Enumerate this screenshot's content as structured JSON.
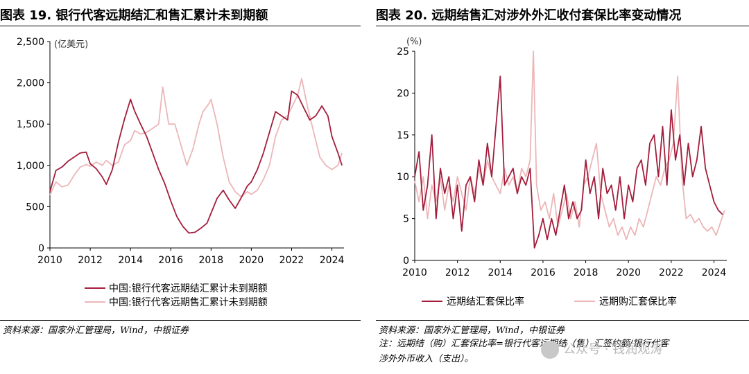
{
  "left": {
    "title": "图表 19.  银行代客远期结汇和售汇累计未到期额",
    "unit": "(亿美元)",
    "source": "资料来源：国家外汇管理局，Wind，中银证券",
    "legend": [
      "中国:银行代客远期结汇累计未到期额",
      "中国:银行代客远期售汇累计未到期额"
    ]
  },
  "right": {
    "title": "图表 20.  远期结售汇对涉外外汇收付套保比率变动情况",
    "unit": "(%)",
    "source": "资料来源：国家外汇管理局，Wind，中银证券",
    "note_line1": "注：远期结（购）汇套保比率=银行代客远期结（售）汇签约额/银行代客",
    "note_line2": "涉外外币收入（支出）。",
    "legend": [
      "远期结汇套保比率",
      "远期购汇套保比率"
    ]
  },
  "watermark": "公众号 · 钱润观涛",
  "colors": {
    "dark": "#a31d3b",
    "light": "#ecb6b8"
  },
  "chart_data": [
    {
      "type": "line",
      "title": "图表 19.  银行代客远期结汇和售汇累计未到期额",
      "ylabel": "(亿美元)",
      "xlim": [
        2010,
        2024.6
      ],
      "ylim": [
        0,
        2500
      ],
      "xticks": [
        2010,
        2012,
        2014,
        2016,
        2018,
        2020,
        2022,
        2024
      ],
      "yticks": [
        0,
        500,
        1000,
        1500,
        2000,
        2500
      ],
      "grid": false,
      "legend_position": "bottom-left",
      "series": [
        {
          "name": "中国:银行代客远期结汇累计未到期额",
          "x": [
            2010.0,
            2010.3,
            2010.6,
            2010.9,
            2011.2,
            2011.5,
            2011.8,
            2012.0,
            2012.3,
            2012.6,
            2012.8,
            2013.1,
            2013.4,
            2013.7,
            2014.0,
            2014.2,
            2014.5,
            2014.8,
            2015.1,
            2015.4,
            2015.7,
            2016.0,
            2016.3,
            2016.6,
            2016.9,
            2017.2,
            2017.5,
            2017.8,
            2018.0,
            2018.3,
            2018.6,
            2018.9,
            2019.2,
            2019.5,
            2019.8,
            2020.0,
            2020.3,
            2020.6,
            2020.9,
            2021.2,
            2021.5,
            2021.8,
            2022.0,
            2022.3,
            2022.6,
            2022.9,
            2023.2,
            2023.5,
            2023.8,
            2024.0,
            2024.3,
            2024.5
          ],
          "values": [
            680,
            940,
            980,
            1050,
            1100,
            1150,
            1160,
            1020,
            960,
            860,
            770,
            950,
            1280,
            1560,
            1800,
            1660,
            1500,
            1350,
            1150,
            950,
            780,
            570,
            380,
            260,
            180,
            190,
            240,
            300,
            420,
            600,
            700,
            580,
            480,
            610,
            750,
            800,
            950,
            1150,
            1400,
            1650,
            1600,
            1550,
            1900,
            1850,
            1700,
            1550,
            1600,
            1720,
            1600,
            1350,
            1150,
            1000
          ]
        },
        {
          "name": "中国:银行代客远期售汇累计未到期额",
          "x": [
            2010.0,
            2010.3,
            2010.6,
            2010.9,
            2011.2,
            2011.5,
            2011.8,
            2012.0,
            2012.3,
            2012.6,
            2012.8,
            2013.1,
            2013.4,
            2013.7,
            2014.0,
            2014.2,
            2014.5,
            2014.8,
            2015.1,
            2015.4,
            2015.6,
            2015.9,
            2016.2,
            2016.5,
            2016.8,
            2017.1,
            2017.4,
            2017.6,
            2017.9,
            2018.0,
            2018.3,
            2018.6,
            2018.9,
            2019.2,
            2019.5,
            2019.8,
            2020.0,
            2020.3,
            2020.6,
            2020.9,
            2021.2,
            2021.5,
            2021.8,
            2022.0,
            2022.3,
            2022.5,
            2022.8,
            2023.1,
            2023.4,
            2023.7,
            2024.0,
            2024.3,
            2024.5
          ],
          "values": [
            640,
            800,
            740,
            760,
            880,
            980,
            1010,
            990,
            1040,
            1000,
            1060,
            1000,
            1040,
            1250,
            1300,
            1420,
            1380,
            1400,
            1450,
            1500,
            1950,
            1500,
            1500,
            1250,
            1000,
            1200,
            1500,
            1650,
            1750,
            1800,
            1500,
            1100,
            800,
            680,
            620,
            680,
            650,
            700,
            830,
            1000,
            1350,
            1550,
            1600,
            1700,
            1850,
            2050,
            1700,
            1400,
            1100,
            1000,
            950,
            1000,
            1150
          ]
        }
      ]
    },
    {
      "type": "line",
      "title": "图表 20.  远期结售汇对涉外外汇收付套保比率变动情况",
      "ylabel": "(%)",
      "xlim": [
        2010,
        2024.6
      ],
      "ylim": [
        0,
        25
      ],
      "xticks": [
        2010,
        2012,
        2014,
        2016,
        2018,
        2020,
        2022,
        2024
      ],
      "yticks": [
        0,
        5,
        10,
        15,
        20,
        25
      ],
      "grid": false,
      "legend_position": "bottom",
      "series": [
        {
          "name": "远期结汇套保比率",
          "x": [
            2010.0,
            2010.2,
            2010.4,
            2010.6,
            2010.8,
            2011.0,
            2011.2,
            2011.4,
            2011.6,
            2011.8,
            2012.0,
            2012.2,
            2012.4,
            2012.6,
            2012.8,
            2013.0,
            2013.2,
            2013.4,
            2013.6,
            2013.8,
            2014.0,
            2014.2,
            2014.4,
            2014.6,
            2014.8,
            2015.0,
            2015.2,
            2015.4,
            2015.6,
            2015.8,
            2016.0,
            2016.2,
            2016.4,
            2016.6,
            2016.8,
            2017.0,
            2017.2,
            2017.4,
            2017.6,
            2017.8,
            2018.0,
            2018.2,
            2018.4,
            2018.6,
            2018.8,
            2019.0,
            2019.2,
            2019.4,
            2019.6,
            2019.8,
            2020.0,
            2020.2,
            2020.4,
            2020.6,
            2020.8,
            2021.0,
            2021.2,
            2021.4,
            2021.6,
            2021.8,
            2022.0,
            2022.2,
            2022.4,
            2022.6,
            2022.8,
            2023.0,
            2023.2,
            2023.4,
            2023.6,
            2023.8,
            2024.0,
            2024.2,
            2024.4
          ],
          "values": [
            10,
            13,
            6,
            9,
            15,
            5,
            11,
            8,
            10,
            5,
            9,
            3.5,
            9,
            10,
            7,
            12,
            9,
            14,
            10,
            16,
            22,
            9,
            10,
            11,
            8,
            10,
            9,
            11,
            1.5,
            3,
            5,
            2.5,
            5,
            3,
            6,
            9,
            5,
            7,
            5,
            6,
            12,
            8,
            10,
            5,
            11,
            8,
            9,
            6,
            10,
            5,
            9,
            7,
            11,
            12,
            9,
            14,
            15,
            10,
            16,
            9,
            18,
            12,
            15,
            9,
            14,
            10,
            12,
            16,
            11,
            9,
            7,
            6,
            5.5
          ]
        },
        {
          "name": "远期购汇套保比率",
          "x": [
            2010.0,
            2010.2,
            2010.4,
            2010.6,
            2010.8,
            2011.0,
            2011.2,
            2011.4,
            2011.6,
            2011.8,
            2012.0,
            2012.2,
            2012.4,
            2012.6,
            2012.8,
            2013.0,
            2013.2,
            2013.4,
            2013.6,
            2013.8,
            2014.0,
            2014.2,
            2014.4,
            2014.6,
            2014.8,
            2015.0,
            2015.2,
            2015.4,
            2015.55,
            2015.7,
            2015.9,
            2016.1,
            2016.3,
            2016.5,
            2016.7,
            2016.9,
            2017.1,
            2017.3,
            2017.5,
            2017.7,
            2017.9,
            2018.1,
            2018.3,
            2018.5,
            2018.7,
            2018.9,
            2019.1,
            2019.3,
            2019.5,
            2019.7,
            2019.9,
            2020.1,
            2020.3,
            2020.5,
            2020.7,
            2020.9,
            2021.1,
            2021.3,
            2021.5,
            2021.7,
            2021.9,
            2022.1,
            2022.3,
            2022.5,
            2022.7,
            2022.9,
            2023.1,
            2023.3,
            2023.5,
            2023.7,
            2023.9,
            2024.1,
            2024.3,
            2024.5
          ],
          "values": [
            9.5,
            7,
            10,
            5,
            9,
            7,
            10,
            6,
            9,
            7,
            10,
            8,
            6,
            10,
            8,
            11,
            9,
            12,
            10,
            9,
            8,
            11,
            9,
            10,
            8,
            11,
            10,
            12,
            25,
            9,
            6,
            7,
            5,
            8,
            4,
            6,
            8,
            5,
            7,
            4,
            9,
            10,
            12,
            14,
            8,
            6,
            4,
            5,
            3,
            4,
            2.5,
            4,
            3,
            5,
            4,
            6,
            8,
            10,
            9,
            11,
            12,
            14,
            22,
            10,
            5,
            5.5,
            4.5,
            5,
            4,
            3.5,
            4,
            3,
            4.5,
            6
          ]
        }
      ]
    }
  ]
}
